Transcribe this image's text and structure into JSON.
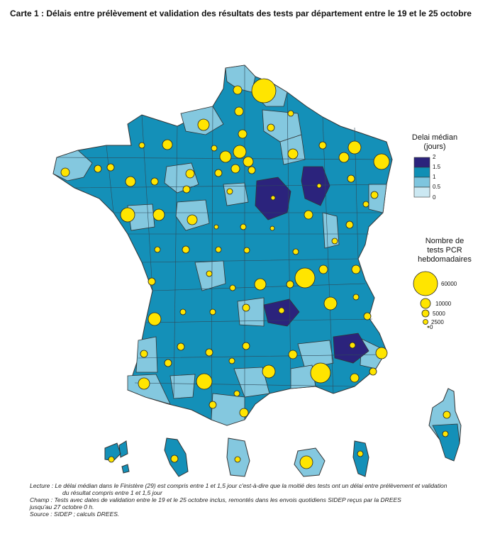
{
  "title": "Carte 1 : Délais entre prélèvement et validation des résultats des tests par département entre le 19 et le 25 octobre",
  "legend_delay": {
    "title_line1": "Delai médian",
    "title_line2": "(jours)",
    "ticks": [
      "2",
      "1.5",
      "1",
      "0.5",
      "0"
    ],
    "colors": [
      "#2b237c",
      "#0f8fb5",
      "#7ec5de",
      "#cbe8f2"
    ]
  },
  "legend_tests": {
    "title_line1": "Nombre de",
    "title_line2": "tests PCR",
    "title_line3": "hebdomadaires",
    "values": [
      "60000",
      "10000",
      "5000",
      "2500",
      "0"
    ]
  },
  "colors": {
    "dark": "#2b237c",
    "mid": "#1490b8",
    "light": "#84c8df",
    "bubble": "#ffe500",
    "outline": "#333333"
  },
  "notes": {
    "lecture_1": "Lecture : Le délai médian dans le Finistère (29) est compris entre 1 et 1,5 jour c'est-à-dire que la moitié des tests ont un délai entre prélèvement et validation",
    "lecture_2": "du résultat compris entre 1 et 1,5 jour",
    "champ_1": "Champ : Tests avec dates de validation entre le 19 et le 25 octobre inclus, remontés dans les envois quotidiens SIDEP reçus par la DREES",
    "champ_2": "jusqu'au 27 octobre 0 h.",
    "source": "Source : SIDEP ; calculs DREES."
  }
}
